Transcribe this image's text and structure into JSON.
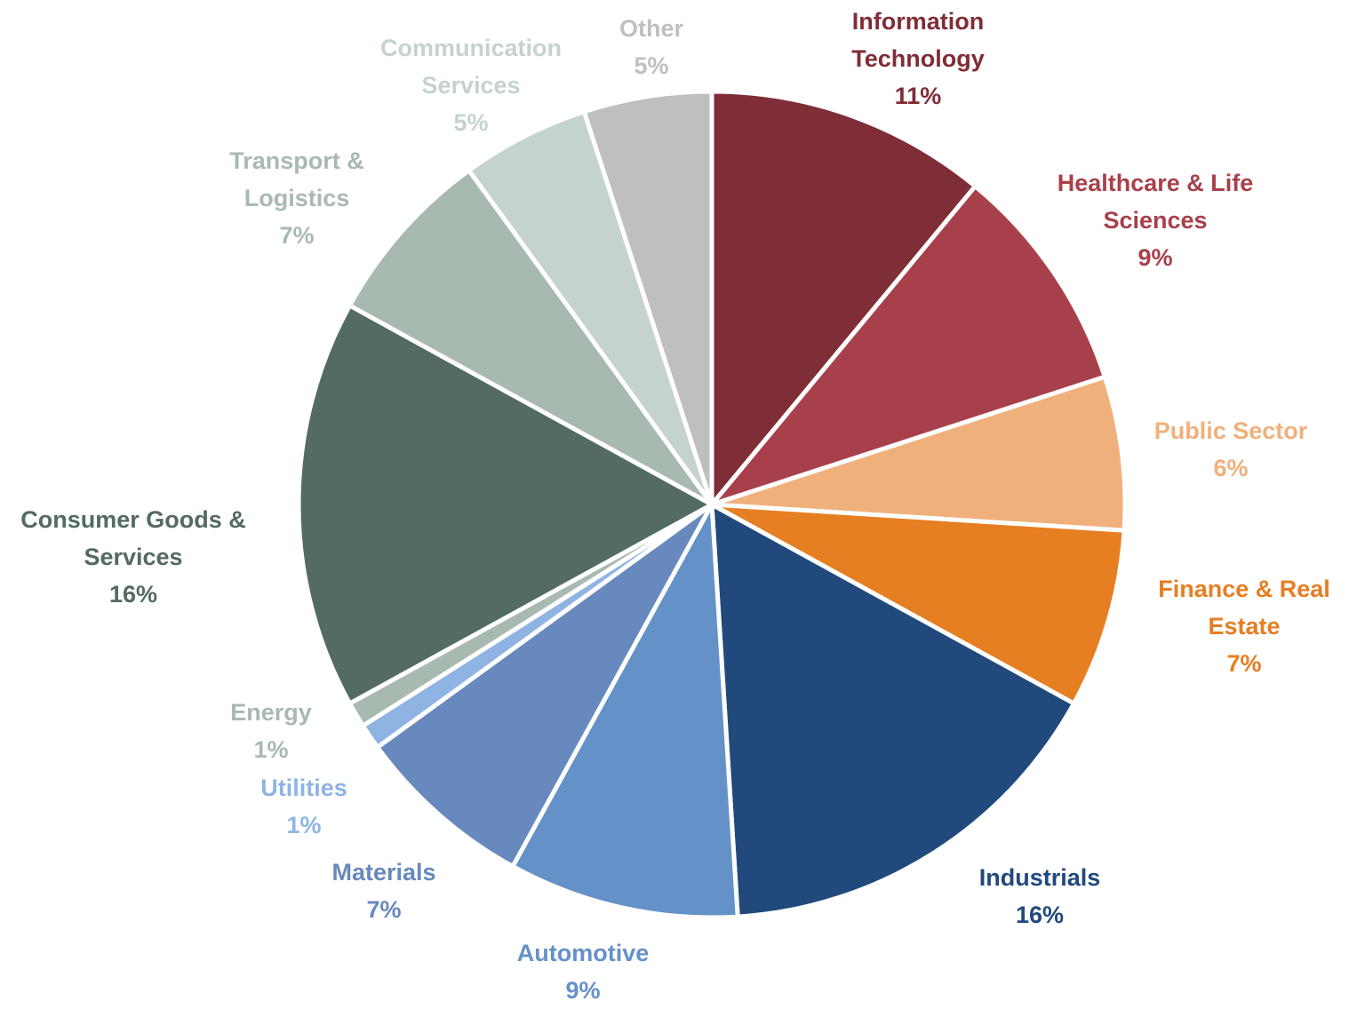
{
  "chart_data": {
    "type": "pie",
    "categories": [
      "Information Technology",
      "Healthcare & Life Sciences",
      "Public Sector",
      "Finance & Real Estate",
      "Industrials",
      "Automotive",
      "Materials",
      "Utilities",
      "Energy",
      "Consumer Goods & Services",
      "Transport & Logistics",
      "Communication Services",
      "Other"
    ],
    "values": [
      11,
      9,
      6,
      7,
      16,
      9,
      7,
      1,
      1,
      16,
      7,
      5,
      5
    ],
    "value_labels": [
      "11%",
      "9%",
      "6%",
      "7%",
      "16%",
      "9%",
      "7%",
      "1%",
      "1%",
      "16%",
      "7%",
      "5%",
      "5%"
    ],
    "colors": [
      "#7f2d37",
      "#a8404b",
      "#f0b07c",
      "#e67e22",
      "#21497c",
      "#6491c8",
      "#6789bd",
      "#8fb4e3",
      "#a8bab0",
      "#536b61",
      "#a8bab0",
      "#c5d3cd",
      "#bfbfbf"
    ]
  }
}
